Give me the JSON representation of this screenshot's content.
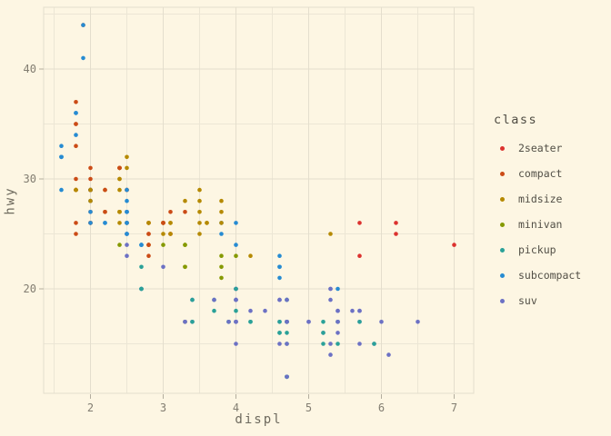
{
  "chart_data": {
    "type": "scatter",
    "title": "",
    "xlabel": "displ",
    "ylabel": "hwy",
    "xlim": [
      1.33,
      7.27
    ],
    "ylim": [
      10.4,
      45.6
    ],
    "x_ticks": [
      2,
      3,
      4,
      5,
      6,
      7
    ],
    "y_ticks": [
      20,
      30,
      40
    ],
    "x_minor_gridlines": [
      1.5,
      2.5,
      3.5,
      4.5,
      5.5,
      6.5
    ],
    "y_minor_gridlines": [
      15,
      25,
      35,
      45
    ],
    "grid": "on",
    "legend_title": "class",
    "legend_position": "right",
    "classes": [
      {
        "name": "2seater",
        "color": "#dc322f"
      },
      {
        "name": "compact",
        "color": "#cb4b16"
      },
      {
        "name": "midsize",
        "color": "#b58900"
      },
      {
        "name": "minivan",
        "color": "#859900"
      },
      {
        "name": "pickup",
        "color": "#2aa198"
      },
      {
        "name": "subcompact",
        "color": "#268bd2"
      },
      {
        "name": "suv",
        "color": "#6c71c4"
      }
    ],
    "points_format": [
      "displ",
      "hwy",
      "class_index"
    ],
    "points": [
      [
        1.8,
        29,
        1
      ],
      [
        1.8,
        29,
        1
      ],
      [
        2,
        31,
        1
      ],
      [
        2,
        30,
        1
      ],
      [
        2.8,
        26,
        1
      ],
      [
        2.8,
        26,
        1
      ],
      [
        3.1,
        27,
        1
      ],
      [
        1.8,
        26,
        1
      ],
      [
        1.8,
        25,
        1
      ],
      [
        2,
        28,
        1
      ],
      [
        2,
        27,
        1
      ],
      [
        2.8,
        25,
        1
      ],
      [
        2.8,
        25,
        1
      ],
      [
        3.1,
        25,
        1
      ],
      [
        3.1,
        25,
        1
      ],
      [
        2.8,
        24,
        2
      ],
      [
        3.1,
        25,
        2
      ],
      [
        4.2,
        23,
        2
      ],
      [
        5.3,
        20,
        6
      ],
      [
        5.3,
        15,
        6
      ],
      [
        5.3,
        20,
        6
      ],
      [
        5.7,
        17,
        6
      ],
      [
        6,
        17,
        6
      ],
      [
        5.7,
        26,
        0
      ],
      [
        5.7,
        23,
        0
      ],
      [
        6.2,
        26,
        0
      ],
      [
        6.2,
        25,
        0
      ],
      [
        7,
        24,
        0
      ],
      [
        5.3,
        19,
        6
      ],
      [
        5.3,
        14,
        6
      ],
      [
        5.7,
        15,
        6
      ],
      [
        6.5,
        17,
        6
      ],
      [
        2.4,
        27,
        2
      ],
      [
        2.4,
        30,
        2
      ],
      [
        3.1,
        26,
        2
      ],
      [
        3.5,
        29,
        2
      ],
      [
        3.6,
        26,
        2
      ],
      [
        2.4,
        24,
        3
      ],
      [
        3,
        24,
        3
      ],
      [
        3.3,
        22,
        3
      ],
      [
        3.3,
        22,
        3
      ],
      [
        3.3,
        24,
        3
      ],
      [
        3.3,
        24,
        3
      ],
      [
        3.3,
        17,
        3
      ],
      [
        3.8,
        22,
        3
      ],
      [
        3.8,
        21,
        3
      ],
      [
        3.8,
        23,
        3
      ],
      [
        4,
        23,
        3
      ],
      [
        3.7,
        19,
        4
      ],
      [
        3.7,
        18,
        4
      ],
      [
        3.9,
        17,
        4
      ],
      [
        3.9,
        17,
        4
      ],
      [
        4.7,
        19,
        4
      ],
      [
        4.7,
        19,
        4
      ],
      [
        4.7,
        12,
        4
      ],
      [
        3.9,
        17,
        6
      ],
      [
        4.7,
        17,
        6
      ],
      [
        4.7,
        12,
        6
      ],
      [
        4.7,
        17,
        6
      ],
      [
        5.2,
        16,
        6
      ],
      [
        5.9,
        15,
        6
      ],
      [
        4.7,
        16,
        4
      ],
      [
        4.7,
        12,
        4
      ],
      [
        4.7,
        17,
        4
      ],
      [
        4.7,
        15,
        4
      ],
      [
        4.7,
        12,
        4
      ],
      [
        4.7,
        17,
        4
      ],
      [
        5.2,
        15,
        4
      ],
      [
        5.2,
        16,
        4
      ],
      [
        5.2,
        17,
        4
      ],
      [
        5.7,
        17,
        4
      ],
      [
        5.9,
        15,
        4
      ],
      [
        4.6,
        17,
        6
      ],
      [
        5.4,
        17,
        6
      ],
      [
        5.4,
        18,
        6
      ],
      [
        4,
        17,
        6
      ],
      [
        4,
        19,
        6
      ],
      [
        4,
        17,
        6
      ],
      [
        4,
        19,
        6
      ],
      [
        4.6,
        19,
        6
      ],
      [
        5,
        17,
        6
      ],
      [
        4.2,
        17,
        4
      ],
      [
        4.2,
        17,
        4
      ],
      [
        4.6,
        16,
        4
      ],
      [
        4.6,
        16,
        4
      ],
      [
        4.6,
        17,
        4
      ],
      [
        5.4,
        15,
        4
      ],
      [
        5.4,
        17,
        4
      ],
      [
        3.8,
        26,
        5
      ],
      [
        3.8,
        25,
        5
      ],
      [
        4,
        26,
        5
      ],
      [
        4,
        24,
        5
      ],
      [
        4.6,
        21,
        5
      ],
      [
        4.6,
        22,
        5
      ],
      [
        4.6,
        23,
        5
      ],
      [
        4.6,
        22,
        5
      ],
      [
        5.4,
        20,
        5
      ],
      [
        1.6,
        33,
        5
      ],
      [
        1.6,
        32,
        5
      ],
      [
        1.6,
        32,
        5
      ],
      [
        1.6,
        29,
        5
      ],
      [
        1.6,
        32,
        5
      ],
      [
        1.8,
        34,
        5
      ],
      [
        1.8,
        36,
        5
      ],
      [
        1.8,
        36,
        5
      ],
      [
        2,
        29,
        5
      ],
      [
        2.4,
        26,
        2
      ],
      [
        2.4,
        27,
        2
      ],
      [
        2.4,
        30,
        2
      ],
      [
        2.4,
        31,
        2
      ],
      [
        2.5,
        26,
        2
      ],
      [
        2.5,
        26,
        2
      ],
      [
        3.3,
        28,
        2
      ],
      [
        2,
        26,
        5
      ],
      [
        2,
        29,
        5
      ],
      [
        2,
        28,
        5
      ],
      [
        2,
        27,
        5
      ],
      [
        2.7,
        24,
        5
      ],
      [
        2.7,
        24,
        5
      ],
      [
        2.7,
        24,
        5
      ],
      [
        3,
        22,
        6
      ],
      [
        3.7,
        19,
        6
      ],
      [
        4,
        20,
        6
      ],
      [
        4.7,
        17,
        6
      ],
      [
        4.7,
        12,
        6
      ],
      [
        4.7,
        19,
        6
      ],
      [
        5.7,
        18,
        6
      ],
      [
        6.1,
        14,
        6
      ],
      [
        4,
        15,
        6
      ],
      [
        4.2,
        18,
        6
      ],
      [
        4.4,
        18,
        6
      ],
      [
        4.6,
        15,
        6
      ],
      [
        5.4,
        17,
        6
      ],
      [
        5.4,
        16,
        6
      ],
      [
        5.4,
        18,
        6
      ],
      [
        4,
        17,
        6
      ],
      [
        4,
        19,
        6
      ],
      [
        4.6,
        19,
        6
      ],
      [
        5,
        17,
        6
      ],
      [
        2.4,
        29,
        2
      ],
      [
        2.4,
        27,
        2
      ],
      [
        2.5,
        31,
        2
      ],
      [
        2.5,
        32,
        2
      ],
      [
        3.5,
        27,
        2
      ],
      [
        3.5,
        26,
        2
      ],
      [
        3,
        26,
        2
      ],
      [
        3,
        25,
        2
      ],
      [
        3.5,
        25,
        2
      ],
      [
        3.3,
        17,
        6
      ],
      [
        3.3,
        17,
        6
      ],
      [
        4,
        20,
        6
      ],
      [
        5.6,
        18,
        6
      ],
      [
        3.1,
        26,
        2
      ],
      [
        3.8,
        26,
        2
      ],
      [
        3.8,
        27,
        2
      ],
      [
        3.8,
        28,
        2
      ],
      [
        5.3,
        25,
        2
      ],
      [
        2.5,
        25,
        6
      ],
      [
        2.5,
        24,
        6
      ],
      [
        2.5,
        27,
        6
      ],
      [
        2.5,
        25,
        6
      ],
      [
        2.5,
        26,
        6
      ],
      [
        2.5,
        23,
        6
      ],
      [
        2.2,
        26,
        5
      ],
      [
        2.2,
        26,
        5
      ],
      [
        2.5,
        26,
        5
      ],
      [
        2.5,
        26,
        5
      ],
      [
        2.5,
        25,
        5
      ],
      [
        2.5,
        27,
        5
      ],
      [
        2.5,
        25,
        5
      ],
      [
        2.5,
        27,
        5
      ],
      [
        2.7,
        20,
        6
      ],
      [
        2.7,
        20,
        6
      ],
      [
        3.4,
        19,
        6
      ],
      [
        3.4,
        17,
        6
      ],
      [
        4,
        20,
        6
      ],
      [
        4.7,
        17,
        6
      ],
      [
        2.2,
        29,
        2
      ],
      [
        2.2,
        27,
        2
      ],
      [
        2.4,
        31,
        2
      ],
      [
        2.4,
        31,
        2
      ],
      [
        3,
        26,
        2
      ],
      [
        3,
        26,
        2
      ],
      [
        3.5,
        28,
        2
      ],
      [
        2.2,
        27,
        1
      ],
      [
        2.2,
        29,
        1
      ],
      [
        2.4,
        31,
        1
      ],
      [
        2.4,
        31,
        1
      ],
      [
        3,
        26,
        1
      ],
      [
        3,
        26,
        1
      ],
      [
        3.3,
        27,
        1
      ],
      [
        1.8,
        30,
        1
      ],
      [
        1.8,
        33,
        1
      ],
      [
        1.8,
        35,
        1
      ],
      [
        1.8,
        37,
        1
      ],
      [
        1.8,
        35,
        1
      ],
      [
        4.7,
        15,
        6
      ],
      [
        5.7,
        18,
        6
      ],
      [
        2.7,
        20,
        4
      ],
      [
        2.7,
        20,
        4
      ],
      [
        2.7,
        22,
        4
      ],
      [
        3.4,
        17,
        4
      ],
      [
        3.4,
        19,
        4
      ],
      [
        4,
        18,
        4
      ],
      [
        4,
        20,
        4
      ],
      [
        2,
        29,
        1
      ],
      [
        2,
        26,
        1
      ],
      [
        2,
        29,
        1
      ],
      [
        2,
        29,
        1
      ],
      [
        2.8,
        24,
        1
      ],
      [
        1.9,
        44,
        1
      ],
      [
        2,
        29,
        1
      ],
      [
        2,
        26,
        1
      ],
      [
        2,
        29,
        1
      ],
      [
        2,
        29,
        1
      ],
      [
        2.5,
        29,
        1
      ],
      [
        2.5,
        29,
        1
      ],
      [
        2.8,
        23,
        1
      ],
      [
        2.8,
        24,
        1
      ],
      [
        1.9,
        44,
        5
      ],
      [
        1.9,
        41,
        5
      ],
      [
        2,
        29,
        5
      ],
      [
        2,
        26,
        5
      ],
      [
        2.5,
        28,
        5
      ],
      [
        2.5,
        29,
        5
      ],
      [
        1.8,
        29,
        2
      ],
      [
        1.8,
        29,
        2
      ],
      [
        2,
        28,
        2
      ],
      [
        2,
        29,
        2
      ],
      [
        2.8,
        26,
        2
      ],
      [
        2.8,
        26,
        2
      ],
      [
        3.6,
        26,
        2
      ]
    ]
  },
  "theme": {
    "background": "#fdf6e3",
    "grid_major": "#e4decd",
    "grid_minor": "#ece6d5",
    "panel_border": "#e4decd",
    "tick_mark_color": "#b3ad9e",
    "tick_label_color": "#827d71",
    "axis_title_color": "#6e6a5e",
    "legend_text_color": "#524f46"
  }
}
